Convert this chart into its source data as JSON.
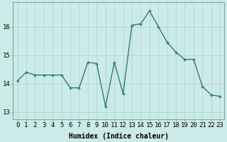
{
  "x": [
    0,
    1,
    2,
    3,
    4,
    5,
    6,
    7,
    8,
    9,
    10,
    11,
    12,
    13,
    14,
    15,
    16,
    17,
    18,
    19,
    20,
    21,
    22,
    23
  ],
  "y": [
    14.1,
    14.4,
    14.3,
    14.3,
    14.3,
    14.3,
    13.85,
    13.85,
    14.75,
    14.7,
    13.2,
    14.75,
    13.65,
    16.05,
    16.1,
    16.55,
    16.0,
    15.45,
    15.1,
    14.85,
    14.85,
    13.9,
    13.6,
    13.55
  ],
  "line_color": "#2e7d6e",
  "marker": "+",
  "markersize": 3,
  "linewidth": 1.0,
  "bg_color": "#cceae7",
  "grid_color": "#b0d8d4",
  "xlabel": "Humidex (Indice chaleur)",
  "xlim": [
    -0.5,
    23.5
  ],
  "ylim": [
    12.75,
    16.85
  ],
  "yticks": [
    13,
    14,
    15,
    16
  ],
  "xticks": [
    0,
    1,
    2,
    3,
    4,
    5,
    6,
    7,
    8,
    9,
    10,
    11,
    12,
    13,
    14,
    15,
    16,
    17,
    18,
    19,
    20,
    21,
    22,
    23
  ],
  "xlabel_fontsize": 7,
  "tick_fontsize": 6.5
}
